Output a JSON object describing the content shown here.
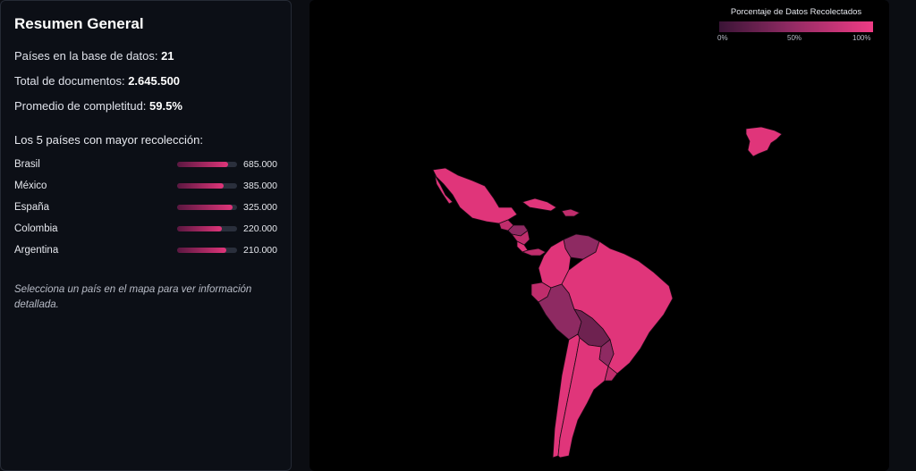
{
  "summary": {
    "title": "Resumen General",
    "countries_label": "Países en la base de datos:",
    "countries_value": "21",
    "docs_label": "Total de documentos:",
    "docs_value": "2.645.500",
    "avg_label": "Promedio de completitud:",
    "avg_value": "59.5%",
    "top_title": "Los 5 países con mayor recolección:",
    "top": [
      {
        "name": "Brasil",
        "value": "685.000",
        "fill": 0.85
      },
      {
        "name": "México",
        "value": "385.000",
        "fill": 0.78
      },
      {
        "name": "España",
        "value": "325.000",
        "fill": 0.92
      },
      {
        "name": "Colombia",
        "value": "220.000",
        "fill": 0.75
      },
      {
        "name": "Argentina",
        "value": "210.000",
        "fill": 0.82
      }
    ],
    "hint": "Selecciona un país en el mapa para ver información detallada."
  },
  "legend": {
    "title": "Porcentaje de Datos Recolectados",
    "tick_0": "0%",
    "tick_50": "50%",
    "tick_100": "100%"
  },
  "colors": {
    "high": "#e0357a",
    "mid": "#c02d6c",
    "low": "#8e2a62",
    "lowest": "#6e2250"
  }
}
